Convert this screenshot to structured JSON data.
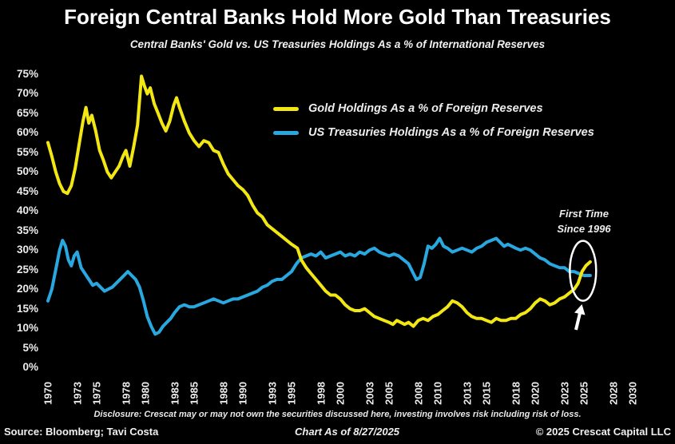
{
  "chart_data": {
    "type": "line",
    "title": "Foreign Central Banks Hold More Gold Than Treasuries",
    "subtitle": "Central Banks' Gold vs. US Treasuries Holdings As a % of International Reserves",
    "xlabel": "",
    "ylabel": "% of International Reserves",
    "ylim": [
      0,
      75
    ],
    "ytick_step": 5,
    "ytick_format": "percent",
    "xticks": [
      1970,
      1973,
      1975,
      1978,
      1980,
      1983,
      1985,
      1988,
      1990,
      1993,
      1995,
      1998,
      2000,
      2003,
      2005,
      2008,
      2010,
      2013,
      2015,
      2018,
      2020,
      2023,
      2025,
      2028,
      2030
    ],
    "xlim": [
      1969.5,
      2031
    ],
    "grid": false,
    "background": "#000000",
    "legend_position": "inside upper center",
    "annotation": {
      "lines": [
        "First Time",
        "Since 1996"
      ],
      "x": 2024.9,
      "y": 24.7
    },
    "series": [
      {
        "name": "Gold Holdings As a % of Foreign Reserves",
        "color": "#f2e713",
        "points": [
          [
            1970,
            57.5
          ],
          [
            1970.4,
            54
          ],
          [
            1970.8,
            50
          ],
          [
            1971.2,
            47
          ],
          [
            1971.6,
            45
          ],
          [
            1972,
            44.5
          ],
          [
            1972.4,
            46.5
          ],
          [
            1972.8,
            51
          ],
          [
            1973.2,
            57
          ],
          [
            1973.6,
            63
          ],
          [
            1973.9,
            66.5
          ],
          [
            1974.2,
            62.5
          ],
          [
            1974.5,
            64.5
          ],
          [
            1974.9,
            60.5
          ],
          [
            1975.3,
            55.5
          ],
          [
            1975.7,
            53
          ],
          [
            1976.1,
            50
          ],
          [
            1976.5,
            48.5
          ],
          [
            1976.9,
            50
          ],
          [
            1977.3,
            51.5
          ],
          [
            1977.7,
            54
          ],
          [
            1978,
            55.5
          ],
          [
            1978.4,
            51.5
          ],
          [
            1978.8,
            56.5
          ],
          [
            1979.2,
            62
          ],
          [
            1979.6,
            74.5
          ],
          [
            1979.9,
            72
          ],
          [
            1980.2,
            70
          ],
          [
            1980.5,
            71.5
          ],
          [
            1980.9,
            67.5
          ],
          [
            1981.3,
            65
          ],
          [
            1981.7,
            62.5
          ],
          [
            1982.1,
            60.5
          ],
          [
            1982.5,
            63
          ],
          [
            1982.9,
            67
          ],
          [
            1983.2,
            69
          ],
          [
            1983.5,
            66.5
          ],
          [
            1984,
            63
          ],
          [
            1984.5,
            60
          ],
          [
            1985,
            58
          ],
          [
            1985.5,
            56.5
          ],
          [
            1986,
            58
          ],
          [
            1986.5,
            57.5
          ],
          [
            1987,
            55.5
          ],
          [
            1987.5,
            55
          ],
          [
            1988,
            52
          ],
          [
            1988.5,
            49.5
          ],
          [
            1989,
            48
          ],
          [
            1989.5,
            46.5
          ],
          [
            1990,
            45.5
          ],
          [
            1990.5,
            44
          ],
          [
            1991,
            41.5
          ],
          [
            1991.5,
            39.5
          ],
          [
            1992,
            38.5
          ],
          [
            1992.5,
            36.5
          ],
          [
            1993,
            35.5
          ],
          [
            1993.5,
            34.5
          ],
          [
            1994,
            33.5
          ],
          [
            1994.5,
            32.5
          ],
          [
            1995,
            31.5
          ],
          [
            1995.6,
            30.5
          ],
          [
            1996,
            27.5
          ],
          [
            1996.5,
            25.5
          ],
          [
            1997,
            24
          ],
          [
            1997.5,
            22.5
          ],
          [
            1998,
            21
          ],
          [
            1998.5,
            19.5
          ],
          [
            1999,
            18.5
          ],
          [
            1999.5,
            18.5
          ],
          [
            2000,
            17.5
          ],
          [
            2000.5,
            16
          ],
          [
            2001,
            15
          ],
          [
            2001.5,
            14.5
          ],
          [
            2002,
            14.5
          ],
          [
            2002.5,
            15
          ],
          [
            2003,
            14
          ],
          [
            2003.5,
            13
          ],
          [
            2004,
            12.5
          ],
          [
            2004.5,
            12
          ],
          [
            2005,
            11.5
          ],
          [
            2005.4,
            11
          ],
          [
            2005.8,
            12
          ],
          [
            2006.2,
            11.5
          ],
          [
            2006.6,
            11
          ],
          [
            2007,
            11.5
          ],
          [
            2007.5,
            10.5
          ],
          [
            2008,
            12
          ],
          [
            2008.5,
            12.5
          ],
          [
            2009,
            12
          ],
          [
            2009.5,
            13
          ],
          [
            2010,
            13.5
          ],
          [
            2010.5,
            14.5
          ],
          [
            2011,
            15.5
          ],
          [
            2011.5,
            17
          ],
          [
            2012,
            16.5
          ],
          [
            2012.5,
            15.5
          ],
          [
            2013,
            14
          ],
          [
            2013.5,
            13
          ],
          [
            2014,
            12.5
          ],
          [
            2014.5,
            12.5
          ],
          [
            2015,
            12
          ],
          [
            2015.5,
            11.5
          ],
          [
            2016,
            12.5
          ],
          [
            2016.5,
            12
          ],
          [
            2017,
            12
          ],
          [
            2017.5,
            12.5
          ],
          [
            2018,
            12.5
          ],
          [
            2018.5,
            13.5
          ],
          [
            2019,
            14
          ],
          [
            2019.5,
            15
          ],
          [
            2020,
            16.5
          ],
          [
            2020.5,
            17.5
          ],
          [
            2021,
            17
          ],
          [
            2021.5,
            16
          ],
          [
            2022,
            16.5
          ],
          [
            2022.5,
            17.5
          ],
          [
            2023,
            18
          ],
          [
            2023.5,
            19
          ],
          [
            2024,
            20
          ],
          [
            2024.4,
            21.5
          ],
          [
            2024.8,
            24.5
          ],
          [
            2025.2,
            26
          ],
          [
            2025.65,
            27
          ]
        ]
      },
      {
        "name": "US Treasuries Holdings As a % of Foreign Reserves",
        "color": "#29a8e0",
        "points": [
          [
            1970,
            17
          ],
          [
            1970.4,
            20
          ],
          [
            1970.8,
            25
          ],
          [
            1971.2,
            30
          ],
          [
            1971.5,
            32.5
          ],
          [
            1971.8,
            31
          ],
          [
            1972.1,
            27.5
          ],
          [
            1972.4,
            26
          ],
          [
            1972.7,
            28.5
          ],
          [
            1973,
            29.5
          ],
          [
            1973.4,
            25.5
          ],
          [
            1973.8,
            24
          ],
          [
            1974.2,
            22.5
          ],
          [
            1974.6,
            21
          ],
          [
            1975,
            21.5
          ],
          [
            1975.4,
            20.5
          ],
          [
            1975.8,
            19.5
          ],
          [
            1976.2,
            20
          ],
          [
            1976.6,
            20.5
          ],
          [
            1977,
            21.5
          ],
          [
            1977.4,
            22.5
          ],
          [
            1977.8,
            23.5
          ],
          [
            1978.2,
            24.5
          ],
          [
            1978.6,
            23.5
          ],
          [
            1979,
            22.5
          ],
          [
            1979.4,
            20.5
          ],
          [
            1979.8,
            17
          ],
          [
            1980.2,
            13
          ],
          [
            1980.6,
            10.5
          ],
          [
            1981,
            8.5
          ],
          [
            1981.4,
            9
          ],
          [
            1981.8,
            10.5
          ],
          [
            1982.2,
            11.5
          ],
          [
            1982.6,
            12.5
          ],
          [
            1983,
            14
          ],
          [
            1983.5,
            15.5
          ],
          [
            1984,
            16
          ],
          [
            1984.5,
            15.5
          ],
          [
            1985,
            15.5
          ],
          [
            1985.5,
            16
          ],
          [
            1986,
            16.5
          ],
          [
            1986.5,
            17
          ],
          [
            1987,
            17.5
          ],
          [
            1987.5,
            17
          ],
          [
            1988,
            16.5
          ],
          [
            1988.5,
            17
          ],
          [
            1989,
            17.5
          ],
          [
            1989.5,
            17.5
          ],
          [
            1990,
            18
          ],
          [
            1990.5,
            18.5
          ],
          [
            1991,
            19
          ],
          [
            1991.5,
            19.5
          ],
          [
            1992,
            20.5
          ],
          [
            1992.5,
            21
          ],
          [
            1993,
            22
          ],
          [
            1993.5,
            22.5
          ],
          [
            1994,
            22.5
          ],
          [
            1994.5,
            23.5
          ],
          [
            1995,
            24.5
          ],
          [
            1995.5,
            26.5
          ],
          [
            1996,
            28
          ],
          [
            1996.5,
            28.5
          ],
          [
            1997,
            29
          ],
          [
            1997.5,
            28.5
          ],
          [
            1998,
            29.5
          ],
          [
            1998.5,
            28
          ],
          [
            1999,
            28.5
          ],
          [
            1999.5,
            29
          ],
          [
            2000,
            29.5
          ],
          [
            2000.5,
            28.5
          ],
          [
            2001,
            29
          ],
          [
            2001.5,
            28.5
          ],
          [
            2002,
            29.5
          ],
          [
            2002.5,
            29
          ],
          [
            2003,
            30
          ],
          [
            2003.5,
            30.5
          ],
          [
            2004,
            29.5
          ],
          [
            2004.5,
            29
          ],
          [
            2005,
            28.5
          ],
          [
            2005.5,
            29
          ],
          [
            2006,
            28.5
          ],
          [
            2006.5,
            27.5
          ],
          [
            2007,
            26.5
          ],
          [
            2007.4,
            24.5
          ],
          [
            2007.8,
            22.5
          ],
          [
            2008.2,
            23
          ],
          [
            2008.6,
            26.5
          ],
          [
            2009,
            31
          ],
          [
            2009.4,
            30.5
          ],
          [
            2009.8,
            31.5
          ],
          [
            2010.2,
            33
          ],
          [
            2010.6,
            31
          ],
          [
            2011,
            30.5
          ],
          [
            2011.5,
            29.5
          ],
          [
            2012,
            30
          ],
          [
            2012.5,
            30.5
          ],
          [
            2013,
            30
          ],
          [
            2013.5,
            29.5
          ],
          [
            2014,
            30.5
          ],
          [
            2014.5,
            31
          ],
          [
            2015,
            32
          ],
          [
            2015.5,
            32.5
          ],
          [
            2016,
            33
          ],
          [
            2016.4,
            32
          ],
          [
            2016.8,
            31
          ],
          [
            2017.2,
            31.5
          ],
          [
            2017.6,
            31
          ],
          [
            2018,
            30.5
          ],
          [
            2018.5,
            30
          ],
          [
            2019,
            30.5
          ],
          [
            2019.5,
            30
          ],
          [
            2020,
            29
          ],
          [
            2020.5,
            28
          ],
          [
            2021,
            27.5
          ],
          [
            2021.5,
            26.5
          ],
          [
            2022,
            26
          ],
          [
            2022.5,
            25.5
          ],
          [
            2023,
            25.5
          ],
          [
            2023.5,
            24.5
          ],
          [
            2024,
            24.5
          ],
          [
            2024.5,
            24
          ],
          [
            2025,
            23.5
          ],
          [
            2025.65,
            23.5
          ]
        ]
      }
    ]
  },
  "footer": {
    "disclosure": "Disclosure: Crescat may or may not own the securities discussed here, investing involves risk including risk of loss.",
    "source": "Source: Bloomberg; Tavi Costa",
    "as_of": "Chart As of 8/27/2025",
    "copyright": "© 2025 Crescat Capital LLC"
  }
}
